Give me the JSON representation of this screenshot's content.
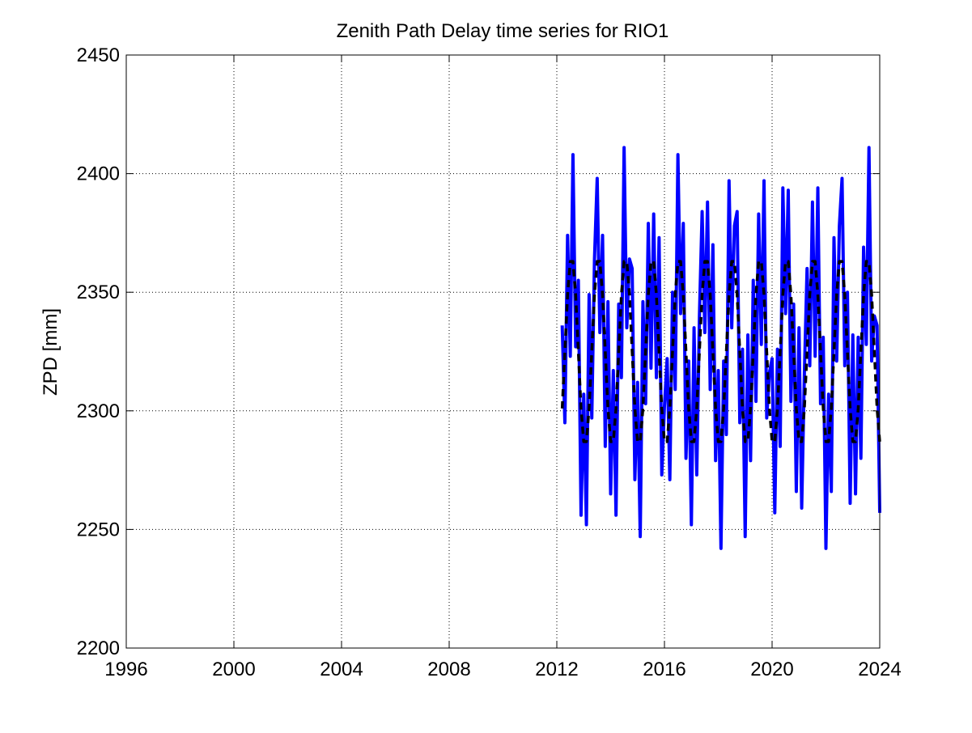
{
  "chart_data": {
    "type": "line",
    "title": "Zenith Path Delay time series for RIO1",
    "ylabel": "ZPD [mm]",
    "x": [
      2012.2,
      2012.3,
      2012.4,
      2012.5,
      2012.6,
      2012.7,
      2012.8,
      2012.9,
      2013.0,
      2013.1,
      2013.2,
      2013.3,
      2013.4,
      2013.5,
      2013.6,
      2013.7,
      2013.8,
      2013.9,
      2014.0,
      2014.1,
      2014.2,
      2014.3,
      2014.4,
      2014.5,
      2014.6,
      2014.7,
      2014.8,
      2014.9,
      2015.0,
      2015.1,
      2015.2,
      2015.3,
      2015.4,
      2015.5,
      2015.6,
      2015.7,
      2015.8,
      2015.9,
      2016.0,
      2016.1,
      2016.2,
      2016.3,
      2016.4,
      2016.5,
      2016.6,
      2016.7,
      2016.8,
      2016.9,
      2017.0,
      2017.1,
      2017.2,
      2017.3,
      2017.4,
      2017.5,
      2017.6,
      2017.7,
      2017.8,
      2017.9,
      2018.0,
      2018.1,
      2018.2,
      2018.3,
      2018.4,
      2018.5,
      2018.6,
      2018.7,
      2018.8,
      2018.9,
      2019.0,
      2019.1,
      2019.2,
      2019.3,
      2019.4,
      2019.5,
      2019.6,
      2019.7,
      2019.8,
      2019.9,
      2020.0,
      2020.1,
      2020.2,
      2020.3,
      2020.4,
      2020.5,
      2020.6,
      2020.7,
      2020.8,
      2020.9,
      2021.0,
      2021.1,
      2021.2,
      2021.3,
      2021.4,
      2021.5,
      2021.6,
      2021.7,
      2021.8,
      2021.9,
      2022.0,
      2022.1,
      2022.2,
      2022.3,
      2022.4,
      2022.5,
      2022.6,
      2022.7,
      2022.8,
      2022.9,
      2023.0,
      2023.1,
      2023.2,
      2023.3,
      2023.4,
      2023.5,
      2023.6,
      2023.7,
      2023.8,
      2023.9,
      2024.0
    ],
    "series": [
      {
        "name": "ZPD",
        "color": "#0000ff",
        "width": 4,
        "dashed": false,
        "values": [
          2336,
          2295,
          2374,
          2323,
          2408,
          2327,
          2355,
          2256,
          2307,
          2252,
          2349,
          2297,
          2364,
          2398,
          2333,
          2374,
          2285,
          2346,
          2265,
          2317,
          2256,
          2345,
          2314,
          2411,
          2335,
          2364,
          2360,
          2271,
          2312,
          2247,
          2346,
          2303,
          2379,
          2318,
          2383,
          2314,
          2373,
          2273,
          2302,
          2322,
          2271,
          2350,
          2309,
          2408,
          2341,
          2379,
          2280,
          2321,
          2252,
          2335,
          2273,
          2340,
          2384,
          2333,
          2388,
          2309,
          2370,
          2279,
          2317,
          2242,
          2321,
          2290,
          2397,
          2335,
          2378,
          2384,
          2295,
          2326,
          2247,
          2332,
          2279,
          2355,
          2304,
          2383,
          2328,
          2397,
          2297,
          2316,
          2322,
          2257,
          2326,
          2285,
          2394,
          2341,
          2393,
          2304,
          2345,
          2266,
          2335,
          2259,
          2316,
          2360,
          2319,
          2388,
          2323,
          2394,
          2303,
          2331,
          2242,
          2307,
          2266,
          2373,
          2321,
          2378,
          2398,
          2319,
          2350,
          2261,
          2332,
          2265,
          2331,
          2280,
          2369,
          2328,
          2411,
          2321,
          2340,
          2336,
          2257
        ]
      },
      {
        "name": "Seasonal fit",
        "color": "#000000",
        "width": 3.5,
        "dashed": true,
        "values": [
          2301,
          2325,
          2349,
          2363,
          2363,
          2349,
          2325,
          2301,
          2287,
          2287,
          2301,
          2325,
          2349,
          2363,
          2363,
          2349,
          2325,
          2301,
          2287,
          2287,
          2301,
          2325,
          2349,
          2363,
          2363,
          2349,
          2325,
          2301,
          2287,
          2287,
          2301,
          2325,
          2349,
          2363,
          2363,
          2349,
          2325,
          2301,
          2287,
          2287,
          2301,
          2325,
          2349,
          2363,
          2363,
          2349,
          2325,
          2301,
          2287,
          2287,
          2301,
          2325,
          2349,
          2363,
          2363,
          2349,
          2325,
          2301,
          2287,
          2287,
          2301,
          2325,
          2349,
          2363,
          2363,
          2349,
          2325,
          2301,
          2287,
          2287,
          2301,
          2325,
          2349,
          2363,
          2363,
          2349,
          2325,
          2301,
          2287,
          2287,
          2301,
          2325,
          2349,
          2363,
          2363,
          2349,
          2325,
          2301,
          2287,
          2287,
          2301,
          2325,
          2349,
          2363,
          2363,
          2349,
          2325,
          2301,
          2287,
          2287,
          2301,
          2325,
          2349,
          2363,
          2363,
          2349,
          2325,
          2301,
          2287,
          2287,
          2301,
          2325,
          2349,
          2363,
          2363,
          2349,
          2325,
          2301,
          2287
        ]
      }
    ],
    "xlim": [
      1996,
      2024
    ],
    "xticks": [
      1996,
      2000,
      2004,
      2008,
      2012,
      2016,
      2020,
      2024
    ],
    "ylim": [
      2200,
      2450
    ],
    "yticks": [
      2200,
      2250,
      2300,
      2350,
      2400,
      2450
    ],
    "grid": true
  }
}
